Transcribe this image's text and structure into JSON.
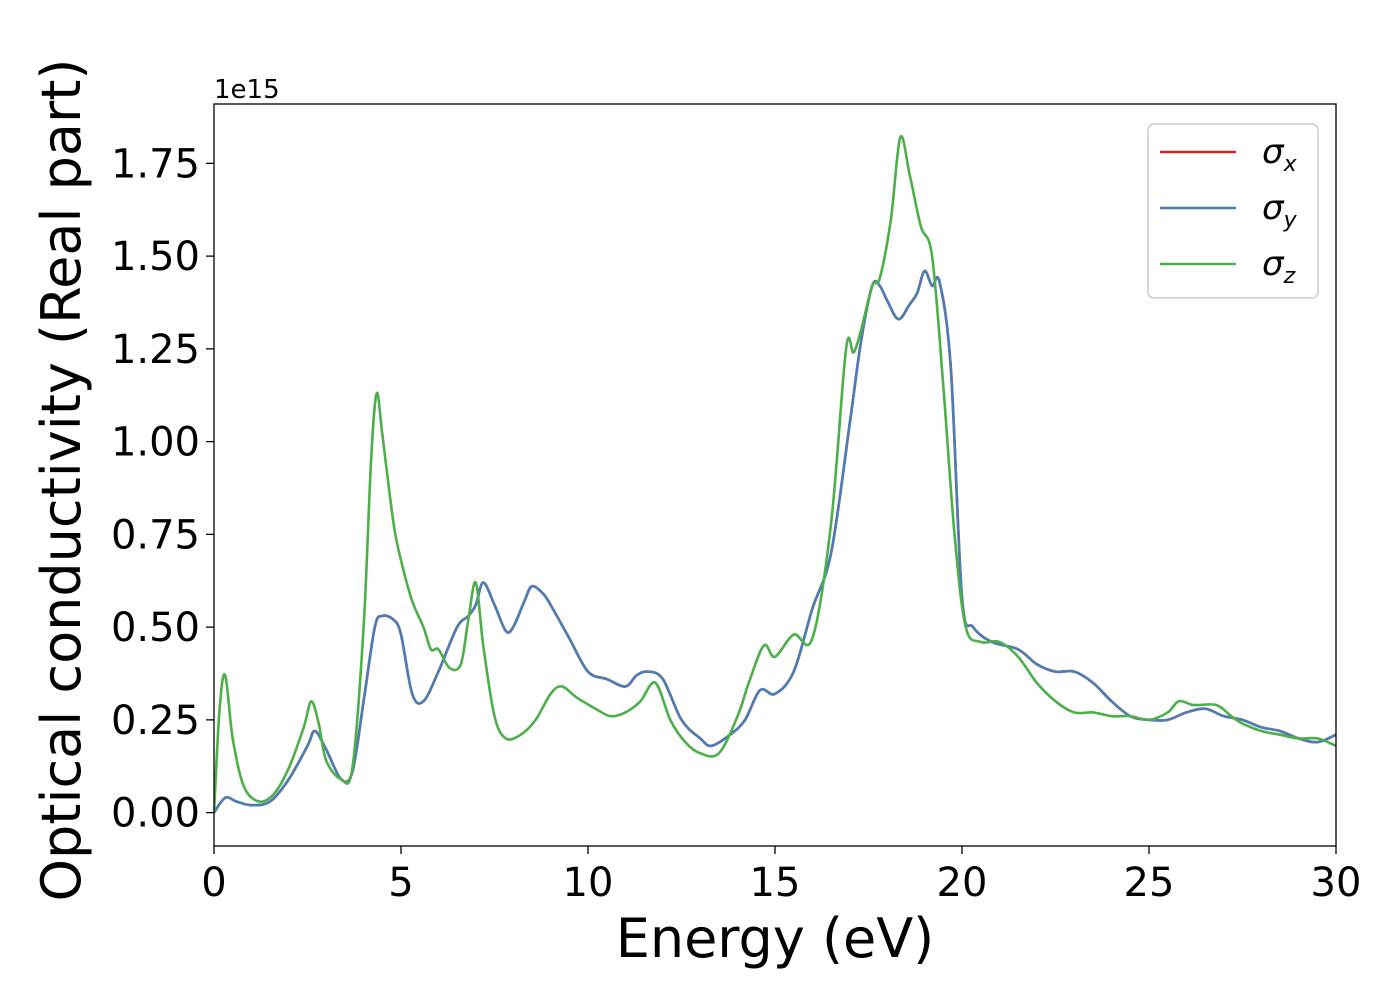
{
  "chart_data": {
    "type": "line",
    "title": "",
    "xlabel": "Energy (eV)",
    "ylabel": "Optical conductivity (Real part)",
    "y_offset_label": "1e15",
    "xlim": [
      0,
      30
    ],
    "ylim": [
      -0.09,
      1.91
    ],
    "xticks": [
      0,
      5,
      10,
      15,
      20,
      25,
      30
    ],
    "xtick_labels": [
      "0",
      "5",
      "10",
      "15",
      "20",
      "25",
      "30"
    ],
    "yticks": [
      0.0,
      0.25,
      0.5,
      0.75,
      1.0,
      1.25,
      1.5,
      1.75
    ],
    "ytick_labels": [
      "0.00",
      "0.25",
      "0.50",
      "0.75",
      "1.00",
      "1.25",
      "1.50",
      "1.75"
    ],
    "grid": false,
    "legend_position": "top-right",
    "series": [
      {
        "name": "σ",
        "subscript": "x",
        "color": "#d62728",
        "x": [
          0,
          0.3,
          0.6,
          1.0,
          1.5,
          2.0,
          2.5,
          2.7,
          3.0,
          3.4,
          3.7,
          4.0,
          4.3,
          4.5,
          4.8,
          5.0,
          5.3,
          5.6,
          6.0,
          6.5,
          6.8,
          7.0,
          7.2,
          7.5,
          7.8,
          8.0,
          8.3,
          8.5,
          8.8,
          9.0,
          9.5,
          10.0,
          10.5,
          11.0,
          11.3,
          11.6,
          12.0,
          12.5,
          13.0,
          13.3,
          13.8,
          14.2,
          14.6,
          15.0,
          15.5,
          16.0,
          16.5,
          17.0,
          17.3,
          17.6,
          17.8,
          18.0,
          18.3,
          18.6,
          18.8,
          19.0,
          19.2,
          19.4,
          19.7,
          20.0,
          20.3,
          20.8,
          21.5,
          22.0,
          22.5,
          23.0,
          23.5,
          24.0,
          24.5,
          25.0,
          25.5,
          26.0,
          26.5,
          27.0,
          27.5,
          28.0,
          28.5,
          29.0,
          29.5,
          30.0
        ],
        "values": [
          0.0,
          0.04,
          0.03,
          0.02,
          0.03,
          0.09,
          0.18,
          0.22,
          0.17,
          0.09,
          0.11,
          0.3,
          0.5,
          0.53,
          0.52,
          0.48,
          0.32,
          0.3,
          0.38,
          0.5,
          0.53,
          0.56,
          0.62,
          0.56,
          0.49,
          0.5,
          0.57,
          0.61,
          0.59,
          0.56,
          0.47,
          0.38,
          0.36,
          0.34,
          0.37,
          0.38,
          0.36,
          0.25,
          0.2,
          0.18,
          0.21,
          0.25,
          0.33,
          0.32,
          0.38,
          0.55,
          0.7,
          1.05,
          1.27,
          1.42,
          1.42,
          1.38,
          1.33,
          1.37,
          1.4,
          1.46,
          1.42,
          1.43,
          1.2,
          0.58,
          0.5,
          0.46,
          0.44,
          0.4,
          0.38,
          0.38,
          0.35,
          0.3,
          0.26,
          0.25,
          0.25,
          0.27,
          0.28,
          0.26,
          0.25,
          0.23,
          0.22,
          0.2,
          0.19,
          0.21
        ]
      },
      {
        "name": "σ",
        "subscript": "y",
        "color": "#4a7eb5",
        "x": [
          0,
          0.3,
          0.6,
          1.0,
          1.5,
          2.0,
          2.5,
          2.7,
          3.0,
          3.4,
          3.7,
          4.0,
          4.3,
          4.5,
          4.8,
          5.0,
          5.3,
          5.6,
          6.0,
          6.5,
          6.8,
          7.0,
          7.2,
          7.5,
          7.8,
          8.0,
          8.3,
          8.5,
          8.8,
          9.0,
          9.5,
          10.0,
          10.5,
          11.0,
          11.3,
          11.6,
          12.0,
          12.5,
          13.0,
          13.3,
          13.8,
          14.2,
          14.6,
          15.0,
          15.5,
          16.0,
          16.5,
          17.0,
          17.3,
          17.6,
          17.8,
          18.0,
          18.3,
          18.6,
          18.8,
          19.0,
          19.2,
          19.4,
          19.7,
          20.0,
          20.3,
          20.8,
          21.5,
          22.0,
          22.5,
          23.0,
          23.5,
          24.0,
          24.5,
          25.0,
          25.5,
          26.0,
          26.5,
          27.0,
          27.5,
          28.0,
          28.5,
          29.0,
          29.5,
          30.0
        ],
        "values": [
          0.0,
          0.04,
          0.03,
          0.02,
          0.03,
          0.09,
          0.18,
          0.22,
          0.17,
          0.09,
          0.11,
          0.3,
          0.5,
          0.53,
          0.52,
          0.48,
          0.32,
          0.3,
          0.38,
          0.5,
          0.53,
          0.56,
          0.62,
          0.56,
          0.49,
          0.5,
          0.57,
          0.61,
          0.59,
          0.56,
          0.47,
          0.38,
          0.36,
          0.34,
          0.37,
          0.38,
          0.36,
          0.25,
          0.2,
          0.18,
          0.21,
          0.25,
          0.33,
          0.32,
          0.38,
          0.55,
          0.7,
          1.05,
          1.27,
          1.42,
          1.42,
          1.38,
          1.33,
          1.37,
          1.4,
          1.46,
          1.42,
          1.43,
          1.2,
          0.58,
          0.5,
          0.46,
          0.44,
          0.4,
          0.38,
          0.38,
          0.35,
          0.3,
          0.26,
          0.25,
          0.25,
          0.27,
          0.28,
          0.26,
          0.25,
          0.23,
          0.22,
          0.2,
          0.19,
          0.21
        ]
      },
      {
        "name": "σ",
        "subscript": "z",
        "color": "#4daf4a",
        "x": [
          0,
          0.15,
          0.3,
          0.5,
          0.8,
          1.2,
          1.6,
          2.0,
          2.4,
          2.6,
          2.8,
          3.0,
          3.4,
          3.7,
          4.0,
          4.2,
          4.35,
          4.5,
          4.8,
          5.0,
          5.3,
          5.6,
          5.8,
          6.0,
          6.3,
          6.6,
          6.8,
          7.0,
          7.2,
          7.5,
          7.8,
          8.2,
          8.6,
          9.0,
          9.3,
          9.7,
          10.2,
          10.6,
          11.0,
          11.4,
          11.8,
          12.2,
          12.6,
          13.0,
          13.5,
          14.0,
          14.3,
          14.7,
          15.0,
          15.5,
          16.0,
          16.5,
          16.9,
          17.1,
          17.3,
          17.6,
          17.8,
          18.1,
          18.35,
          18.6,
          18.9,
          19.2,
          19.5,
          19.8,
          20.1,
          20.5,
          21.0,
          21.5,
          22.0,
          22.5,
          23.0,
          23.5,
          24.0,
          24.5,
          25.0,
          25.5,
          25.8,
          26.2,
          26.8,
          27.2,
          27.5,
          28.0,
          28.5,
          29.0,
          29.5,
          30.0
        ],
        "values": [
          0.0,
          0.28,
          0.37,
          0.2,
          0.07,
          0.03,
          0.05,
          0.12,
          0.23,
          0.3,
          0.24,
          0.14,
          0.09,
          0.12,
          0.5,
          0.95,
          1.13,
          1.02,
          0.78,
          0.68,
          0.57,
          0.5,
          0.44,
          0.44,
          0.39,
          0.4,
          0.52,
          0.62,
          0.45,
          0.26,
          0.2,
          0.21,
          0.25,
          0.32,
          0.34,
          0.31,
          0.28,
          0.26,
          0.27,
          0.3,
          0.35,
          0.25,
          0.19,
          0.16,
          0.16,
          0.26,
          0.35,
          0.45,
          0.42,
          0.48,
          0.47,
          0.78,
          1.25,
          1.24,
          1.3,
          1.42,
          1.44,
          1.6,
          1.82,
          1.72,
          1.58,
          1.5,
          1.15,
          0.75,
          0.5,
          0.46,
          0.46,
          0.42,
          0.35,
          0.3,
          0.27,
          0.27,
          0.26,
          0.26,
          0.25,
          0.27,
          0.3,
          0.29,
          0.29,
          0.26,
          0.24,
          0.22,
          0.21,
          0.2,
          0.2,
          0.18
        ]
      }
    ]
  }
}
